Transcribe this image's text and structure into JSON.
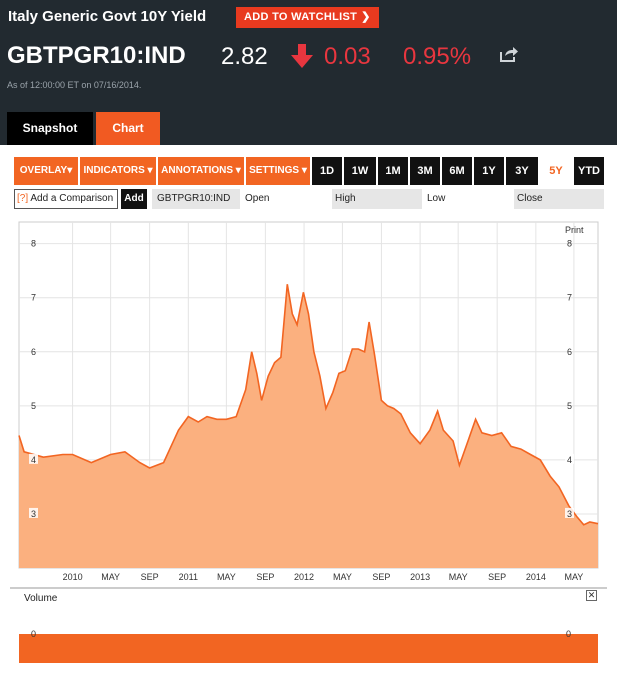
{
  "header": {
    "title": "Italy Generic Govt 10Y Yield",
    "watchlist_label": "ADD TO WATCHLIST",
    "ticker": "GBTPGR10:IND",
    "price": "2.82",
    "change": "0.03",
    "change_pct": "0.95%",
    "as_of": "As of 12:00:00 ET on 07/16/2014.",
    "change_color": "#e8363f"
  },
  "tabs": [
    {
      "label": "Snapshot"
    },
    {
      "label": "Chart"
    }
  ],
  "toolbar": {
    "menus": [
      {
        "label": "OVERLAY▾"
      },
      {
        "label": "INDICATORS ▾"
      },
      {
        "label": "ANNOTATIONS ▾"
      },
      {
        "label": "SETTINGS ▾"
      }
    ],
    "ranges": [
      "1D",
      "1W",
      "1M",
      "3M",
      "6M",
      "1Y",
      "3Y",
      "5Y",
      "YTD"
    ],
    "active_range": "5Y",
    "accent_color": "#f26522"
  },
  "compare": {
    "help": "[?]",
    "placeholder": "Add a Comparison",
    "add_label": "Add",
    "ticker": "GBTPGR10:IND",
    "open_label": "Open",
    "high_label": "High",
    "low_label": "Low",
    "close_label": "Close"
  },
  "print_label": "Print",
  "volume": {
    "label": "Volume",
    "close_glyph": "✕",
    "zero_label": "0"
  },
  "chart_data": {
    "type": "area",
    "title": "",
    "xlabel": "",
    "ylabel": "",
    "ylim": [
      2.0,
      8.4
    ],
    "yticks": [
      3,
      4,
      5,
      6,
      7,
      8
    ],
    "xtick_labels": [
      "2010",
      "MAY",
      "SEP",
      "2011",
      "MAY",
      "SEP",
      "2012",
      "MAY",
      "SEP",
      "2013",
      "MAY",
      "SEP",
      "2014",
      "MAY"
    ],
    "x_range": [
      "2009-07-16",
      "2014-07-16"
    ],
    "grid": true,
    "fill_color": "#fbb07f",
    "line_color": "#f26522",
    "series": [
      {
        "x": [
          "2009-07-16",
          "2009-08-01",
          "2009-10-01",
          "2009-12-01",
          "2010-01-01",
          "2010-03-01",
          "2010-05-01",
          "2010-06-15",
          "2010-08-01",
          "2010-09-01",
          "2010-10-15",
          "2010-12-01",
          "2011-01-01",
          "2011-02-01",
          "2011-03-01",
          "2011-04-01",
          "2011-05-01",
          "2011-06-01",
          "2011-07-01",
          "2011-07-20",
          "2011-08-05",
          "2011-08-20",
          "2011-09-10",
          "2011-09-30",
          "2011-10-20",
          "2011-11-09",
          "2011-11-25",
          "2011-12-10",
          "2011-12-30",
          "2012-01-15",
          "2012-02-01",
          "2012-02-20",
          "2012-03-10",
          "2012-04-01",
          "2012-04-20",
          "2012-05-10",
          "2012-06-01",
          "2012-06-20",
          "2012-07-10",
          "2012-07-24",
          "2012-08-10",
          "2012-09-01",
          "2012-09-20",
          "2012-10-10",
          "2012-11-01",
          "2012-12-01",
          "2013-01-01",
          "2013-02-01",
          "2013-02-25",
          "2013-03-15",
          "2013-04-15",
          "2013-05-05",
          "2013-06-01",
          "2013-06-25",
          "2013-07-15",
          "2013-08-15",
          "2013-09-15",
          "2013-10-15",
          "2013-11-15",
          "2013-12-15",
          "2014-01-15",
          "2014-02-15",
          "2014-03-15",
          "2014-04-15",
          "2014-05-10",
          "2014-06-01",
          "2014-06-20",
          "2014-07-16"
        ],
        "values": [
          4.45,
          4.15,
          4.05,
          4.1,
          4.1,
          3.95,
          4.1,
          4.15,
          3.95,
          3.85,
          3.95,
          4.55,
          4.8,
          4.7,
          4.8,
          4.75,
          4.75,
          4.8,
          5.3,
          6.0,
          5.6,
          5.1,
          5.55,
          5.8,
          5.9,
          7.25,
          6.7,
          6.5,
          7.1,
          6.7,
          6.0,
          5.55,
          4.95,
          5.25,
          5.6,
          5.65,
          6.05,
          6.05,
          6.0,
          6.55,
          5.95,
          5.1,
          5.0,
          4.95,
          4.85,
          4.5,
          4.3,
          4.55,
          4.9,
          4.55,
          4.35,
          3.9,
          4.35,
          4.75,
          4.5,
          4.45,
          4.5,
          4.25,
          4.2,
          4.1,
          4.0,
          3.7,
          3.5,
          3.15,
          2.95,
          2.8,
          2.85,
          2.82
        ]
      }
    ],
    "volume_zero": 0
  }
}
